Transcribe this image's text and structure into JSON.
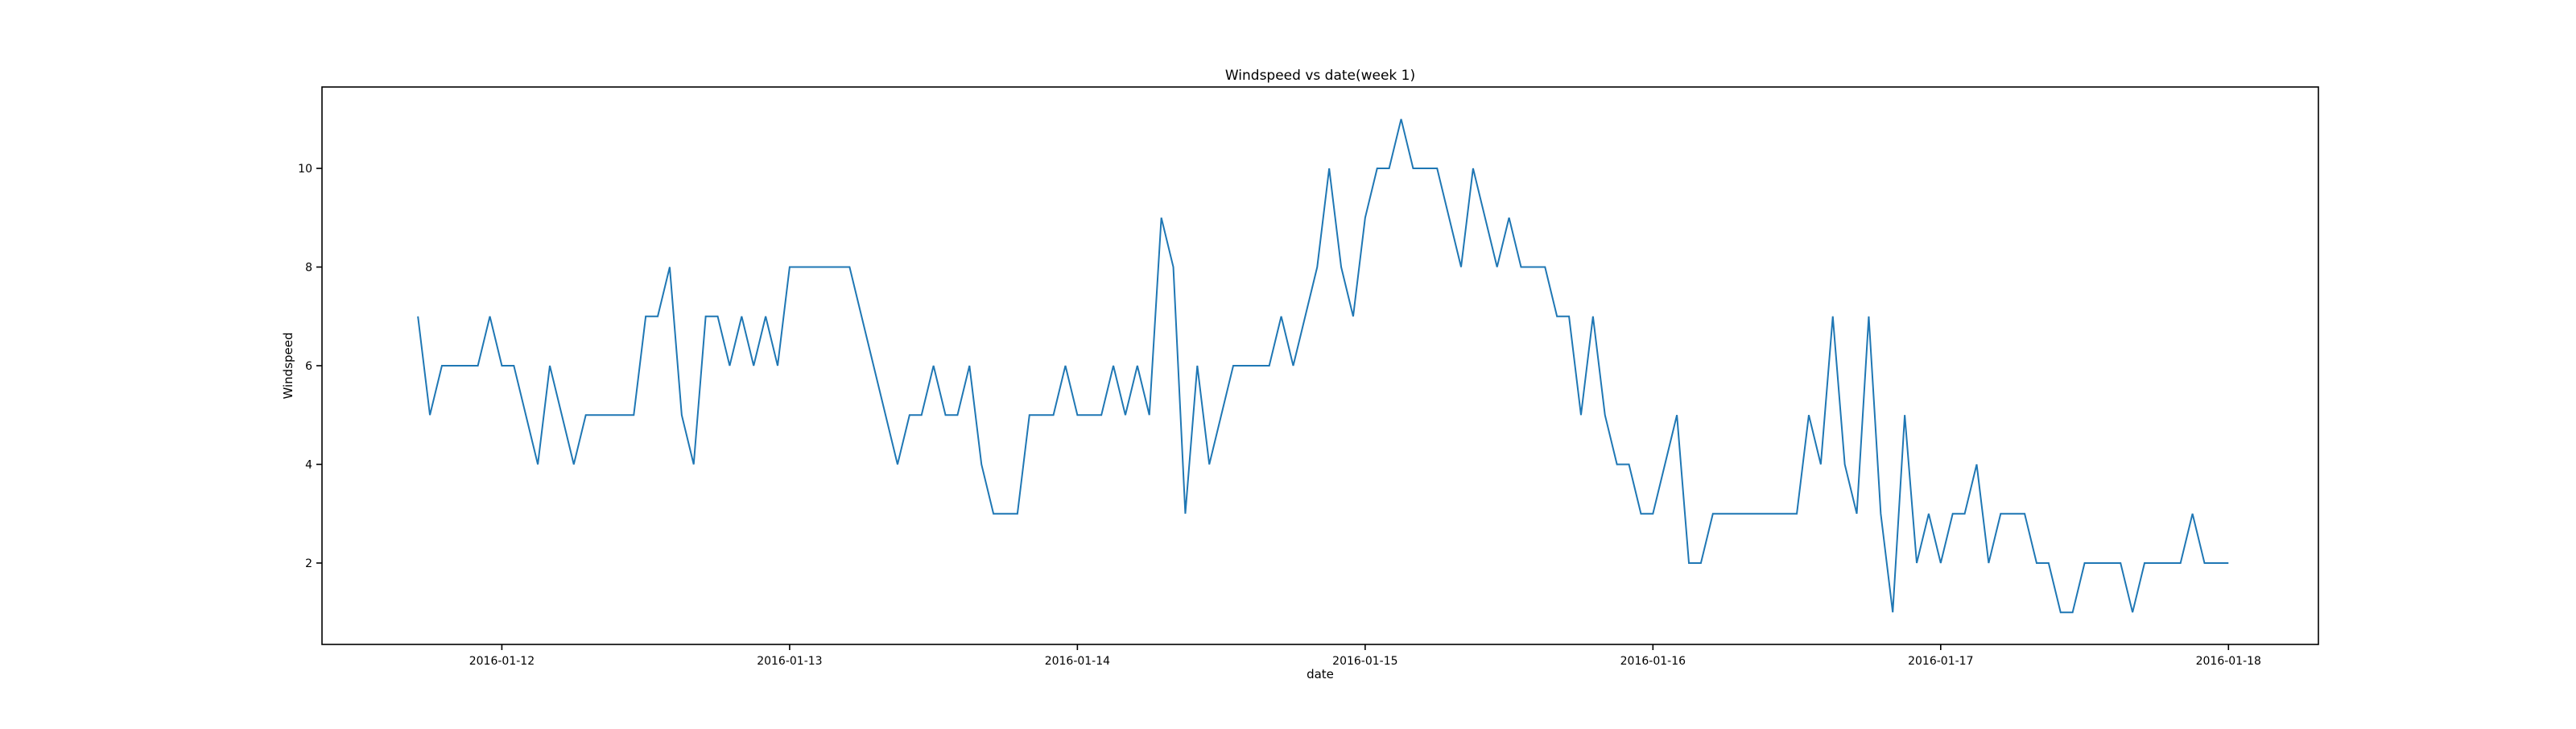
{
  "chart_data": {
    "type": "line",
    "title": "Windspeed vs date(week 1)",
    "xlabel": "date",
    "ylabel": "Windspeed",
    "x_ticks": [
      "2016-01-12",
      "2016-01-13",
      "2016-01-14",
      "2016-01-15",
      "2016-01-16",
      "2016-01-17",
      "2016-01-18"
    ],
    "y_ticks": [
      2,
      4,
      6,
      8,
      10
    ],
    "x_range": [
      "2016-01-11 09:00",
      "2016-01-18 07:30"
    ],
    "ylim": [
      0.35,
      11.65
    ],
    "grid": false,
    "legend": "none",
    "line_color": "#1f77b4",
    "x_interval_hours": 1,
    "start": "2016-01-11 17:00",
    "values": [
      7,
      5,
      6,
      6,
      6,
      6,
      7,
      6,
      6,
      5,
      4,
      6,
      5,
      4,
      5,
      5,
      5,
      5,
      5,
      7,
      7,
      8,
      5,
      4,
      7,
      7,
      6,
      7,
      6,
      7,
      6,
      8,
      8,
      8,
      8,
      8,
      8,
      7,
      6,
      5,
      4,
      5,
      5,
      6,
      5,
      5,
      6,
      4,
      3,
      3,
      3,
      5,
      5,
      5,
      6,
      5,
      5,
      5,
      6,
      5,
      6,
      5,
      9,
      8,
      3,
      6,
      4,
      5,
      6,
      6,
      6,
      6,
      7,
      6,
      7,
      8,
      10,
      8,
      7,
      9,
      10,
      10,
      11,
      10,
      10,
      10,
      9,
      8,
      10,
      9,
      8,
      9,
      8,
      8,
      8,
      7,
      7,
      5,
      7,
      5,
      4,
      4,
      3,
      3,
      4,
      5,
      2,
      2,
      3,
      3,
      3,
      3,
      3,
      3,
      3,
      3,
      5,
      4,
      7,
      4,
      3,
      7,
      3,
      1,
      5,
      2,
      3,
      2,
      3,
      3,
      4,
      2,
      3,
      3,
      3,
      2,
      2,
      1,
      1,
      2,
      2,
      2,
      2,
      1,
      2,
      2,
      2,
      2,
      3,
      2,
      2,
      2
    ]
  }
}
